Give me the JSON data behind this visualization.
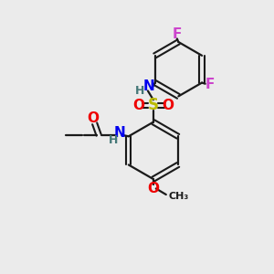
{
  "bg_color": "#ebebeb",
  "bond_color": "#1a1a1a",
  "colors": {
    "N": "#0000ee",
    "O": "#ee0000",
    "S": "#bbbb00",
    "F": "#cc44cc",
    "H": "#447777",
    "C": "#1a1a1a"
  },
  "figsize": [
    3.0,
    3.0
  ],
  "dpi": 100
}
